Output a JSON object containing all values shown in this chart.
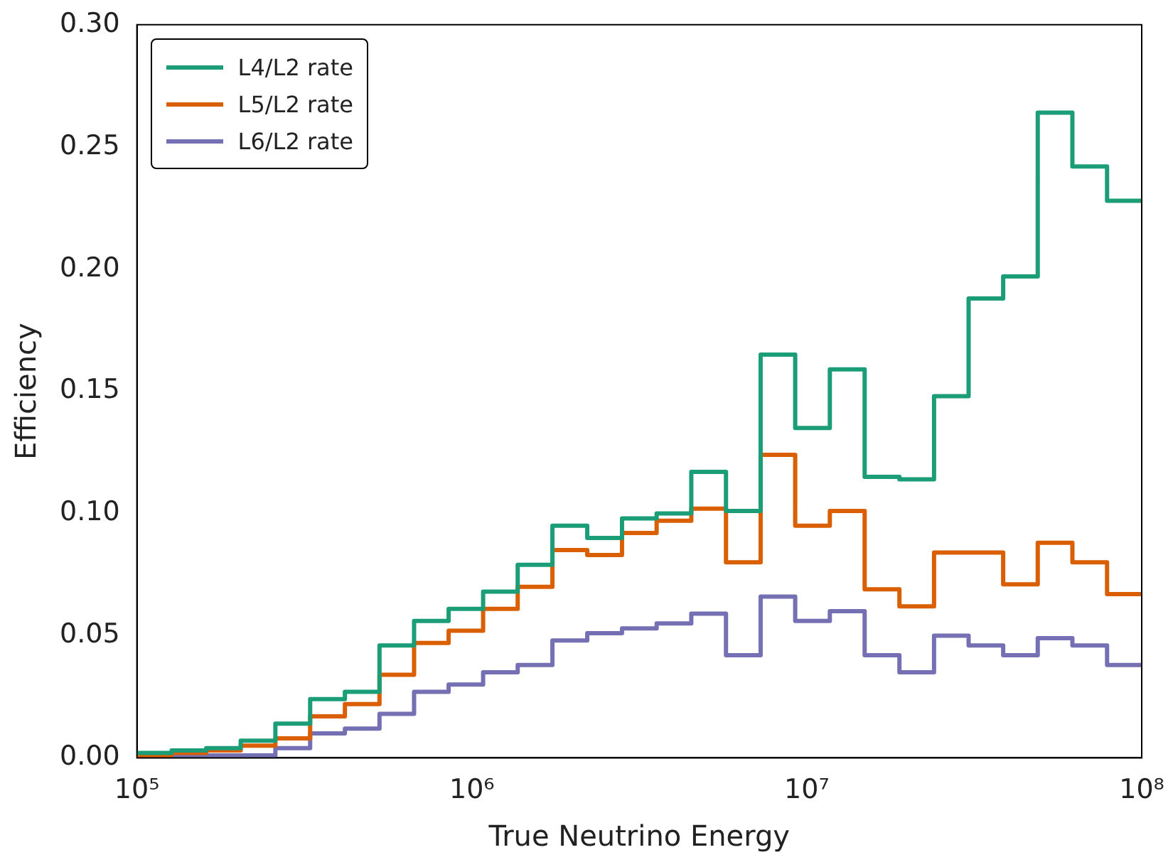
{
  "chart_data": {
    "type": "histogram",
    "xlabel": "True Neutrino Energy",
    "ylabel": "Efficiency",
    "log": "x",
    "bins": [
      100000,
      127000,
      161000,
      204000,
      259000,
      329000,
      418000,
      530000,
      672000,
      853000,
      1080000,
      1370000,
      1740000,
      2210000,
      2810000,
      3560000,
      4520000,
      5740000,
      7280000,
      9240000,
      11700000,
      14900000,
      18900000,
      24000000,
      30400000,
      38600000,
      48900000,
      62100000,
      78800000,
      100000000
    ],
    "series": [
      {
        "name": "L4/L2 rate",
        "color": "#1b9e77",
        "values": [
          0.002,
          0.003,
          0.004,
          0.007,
          0.014,
          0.024,
          0.027,
          0.046,
          0.056,
          0.061,
          0.068,
          0.079,
          0.095,
          0.09,
          0.098,
          0.1,
          0.117,
          0.101,
          0.165,
          0.135,
          0.159,
          0.115,
          0.114,
          0.148,
          0.188,
          0.197,
          0.264,
          0.242,
          0.228
        ]
      },
      {
        "name": "L5/L2 rate",
        "color": "#d95f02",
        "values": [
          0.001,
          0.002,
          0.003,
          0.005,
          0.008,
          0.017,
          0.022,
          0.034,
          0.047,
          0.052,
          0.061,
          0.07,
          0.085,
          0.083,
          0.092,
          0.097,
          0.102,
          0.08,
          0.124,
          0.095,
          0.101,
          0.069,
          0.062,
          0.084,
          0.084,
          0.071,
          0.088,
          0.08,
          0.067
        ]
      },
      {
        "name": "L6/L2 rate",
        "color": "#7570b3",
        "values": [
          0.0,
          0.001,
          0.001,
          0.001,
          0.004,
          0.01,
          0.012,
          0.018,
          0.027,
          0.03,
          0.035,
          0.038,
          0.048,
          0.051,
          0.053,
          0.055,
          0.059,
          0.042,
          0.066,
          0.056,
          0.06,
          0.042,
          0.035,
          0.05,
          0.046,
          0.042,
          0.049,
          0.046,
          0.038
        ]
      }
    ],
    "xlim": [
      100000,
      100000000
    ],
    "xticks": [
      {
        "value": 100000,
        "label": "10⁵"
      },
      {
        "value": 1000000,
        "label": "10⁶"
      },
      {
        "value": 10000000,
        "label": "10⁷"
      },
      {
        "value": 100000000,
        "label": "10⁸"
      }
    ],
    "ylim": [
      0,
      0.3
    ],
    "yticks": [
      {
        "value": 0,
        "label": "0.00"
      },
      {
        "value": 0.05,
        "label": "0.05"
      },
      {
        "value": 0.1,
        "label": "0.10"
      },
      {
        "value": 0.15,
        "label": "0.15"
      },
      {
        "value": 0.2,
        "label": "0.20"
      },
      {
        "value": 0.25,
        "label": "0.25"
      },
      {
        "value": 0.3,
        "label": "0.30"
      }
    ],
    "legend": "top left",
    "grid": false
  }
}
